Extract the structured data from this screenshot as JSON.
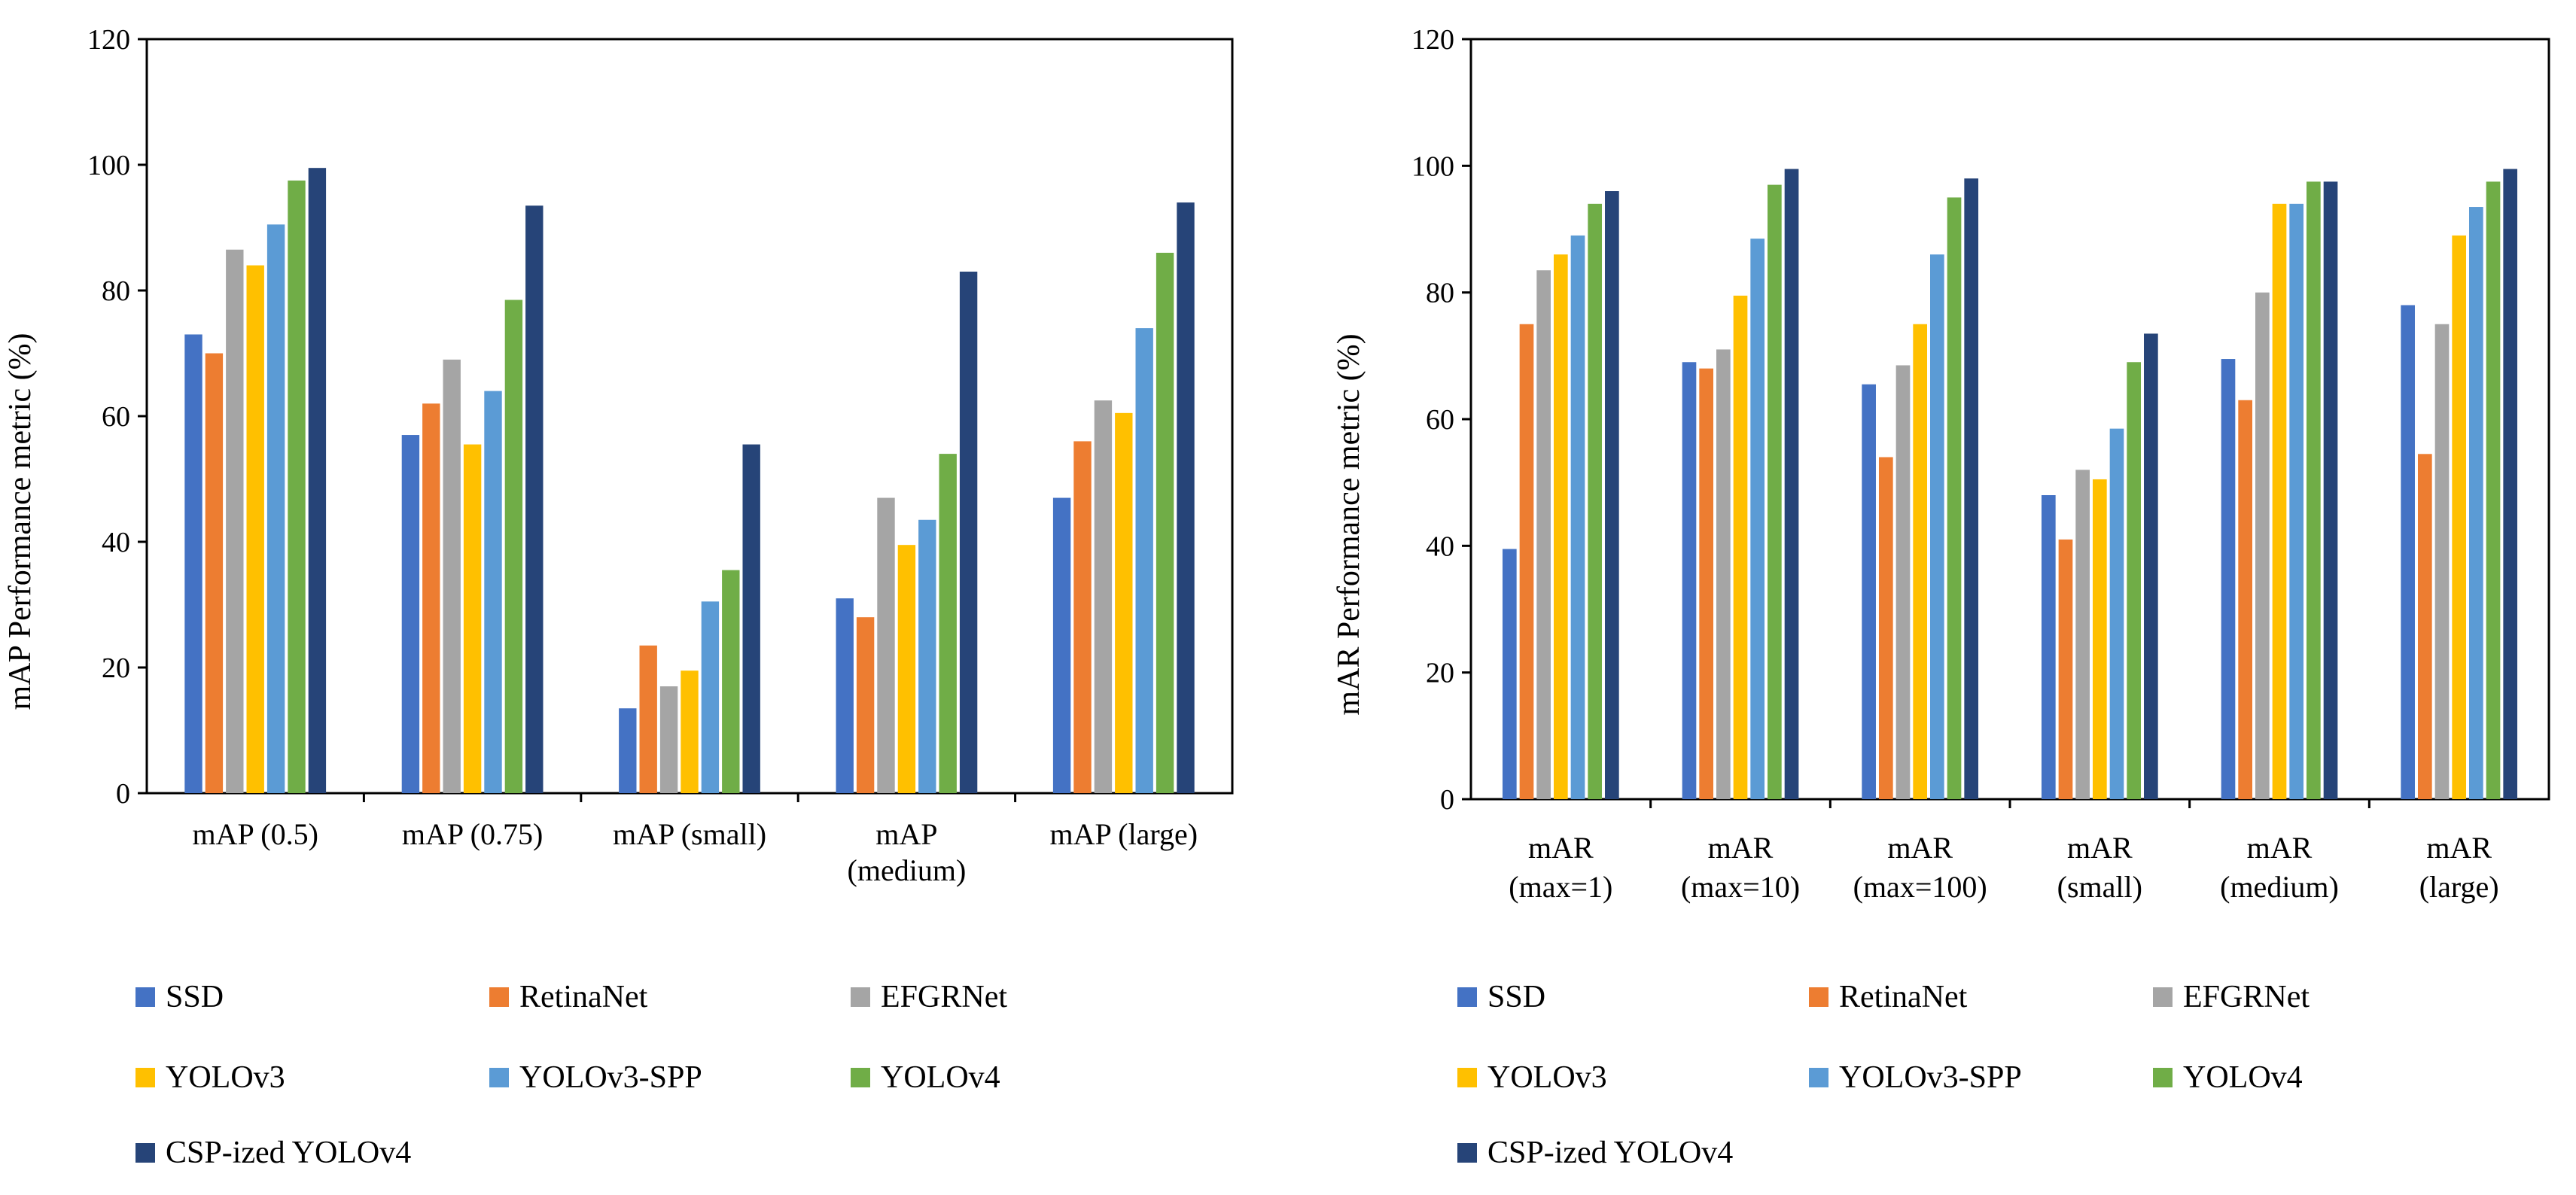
{
  "series_styles": [
    {
      "name": "SSD",
      "color": "#4472C4"
    },
    {
      "name": "RetinaNet",
      "color": "#ED7D31"
    },
    {
      "name": "EFGRNet",
      "color": "#A5A5A5"
    },
    {
      "name": "YOLOv3",
      "color": "#FFC000"
    },
    {
      "name": "YOLOv3-SPP",
      "color": "#5B9BD5"
    },
    {
      "name": "YOLOv4",
      "color": "#70AD47"
    },
    {
      "name": "CSP-ized YOLOv4",
      "color": "#264478"
    }
  ],
  "chart_data": [
    {
      "type": "bar",
      "title": "",
      "xlabel": "",
      "ylabel": "mAP Performance metric (%)",
      "ylim": [
        0,
        120
      ],
      "yticks": [
        0,
        20,
        40,
        60,
        80,
        100,
        120
      ],
      "grid": false,
      "legend": "bottom",
      "categories": [
        [
          "mAP (0.5)"
        ],
        [
          "mAP (0.75)"
        ],
        [
          "mAP (small)"
        ],
        [
          "mAP",
          "(medium)"
        ],
        [
          "mAP (large)"
        ]
      ],
      "series": [
        {
          "name": "SSD",
          "values": [
            73,
            57,
            13.5,
            31,
            47
          ]
        },
        {
          "name": "RetinaNet",
          "values": [
            70,
            62,
            23.5,
            28,
            56
          ]
        },
        {
          "name": "EFGRNet",
          "values": [
            86.5,
            69,
            17,
            47,
            62.5
          ]
        },
        {
          "name": "YOLOv3",
          "values": [
            84,
            55.5,
            19.5,
            39.5,
            60.5
          ]
        },
        {
          "name": "YOLOv3-SPP",
          "values": [
            90.5,
            64,
            30.5,
            43.5,
            74
          ]
        },
        {
          "name": "YOLOv4",
          "values": [
            97.5,
            78.5,
            35.5,
            54,
            86
          ]
        },
        {
          "name": "CSP-ized YOLOv4",
          "values": [
            99.5,
            93.5,
            55.5,
            83,
            94
          ]
        }
      ]
    },
    {
      "type": "bar",
      "title": "",
      "xlabel": "",
      "ylabel": "mAR Performance metric (%)",
      "ylim": [
        0,
        120
      ],
      "yticks": [
        0,
        20,
        40,
        60,
        80,
        100,
        120
      ],
      "grid": false,
      "legend": "bottom",
      "categories": [
        [
          "mAR",
          "(max=1)"
        ],
        [
          "mAR",
          "(max=10)"
        ],
        [
          "mAR",
          "(max=100)"
        ],
        [
          "mAR",
          "(small)"
        ],
        [
          "mAR",
          "(medium)"
        ],
        [
          "mAR",
          "(large)"
        ]
      ],
      "series": [
        {
          "name": "SSD",
          "values": [
            39.5,
            69,
            65.5,
            48,
            69.5,
            78
          ]
        },
        {
          "name": "RetinaNet",
          "values": [
            75,
            68,
            54,
            41,
            63,
            54.5
          ]
        },
        {
          "name": "EFGRNet",
          "values": [
            83.5,
            71,
            68.5,
            52,
            80,
            75
          ]
        },
        {
          "name": "YOLOv3",
          "values": [
            86,
            79.5,
            75,
            50.5,
            94,
            89
          ]
        },
        {
          "name": "YOLOv3-SPP",
          "values": [
            89,
            88.5,
            86,
            58.5,
            94,
            93.5
          ]
        },
        {
          "name": "YOLOv4",
          "values": [
            94,
            97,
            95,
            69,
            97.5,
            97.5
          ]
        },
        {
          "name": "CSP-ized YOLOv4",
          "values": [
            96,
            99.5,
            98,
            73.5,
            97.5,
            99.5
          ]
        }
      ]
    }
  ]
}
